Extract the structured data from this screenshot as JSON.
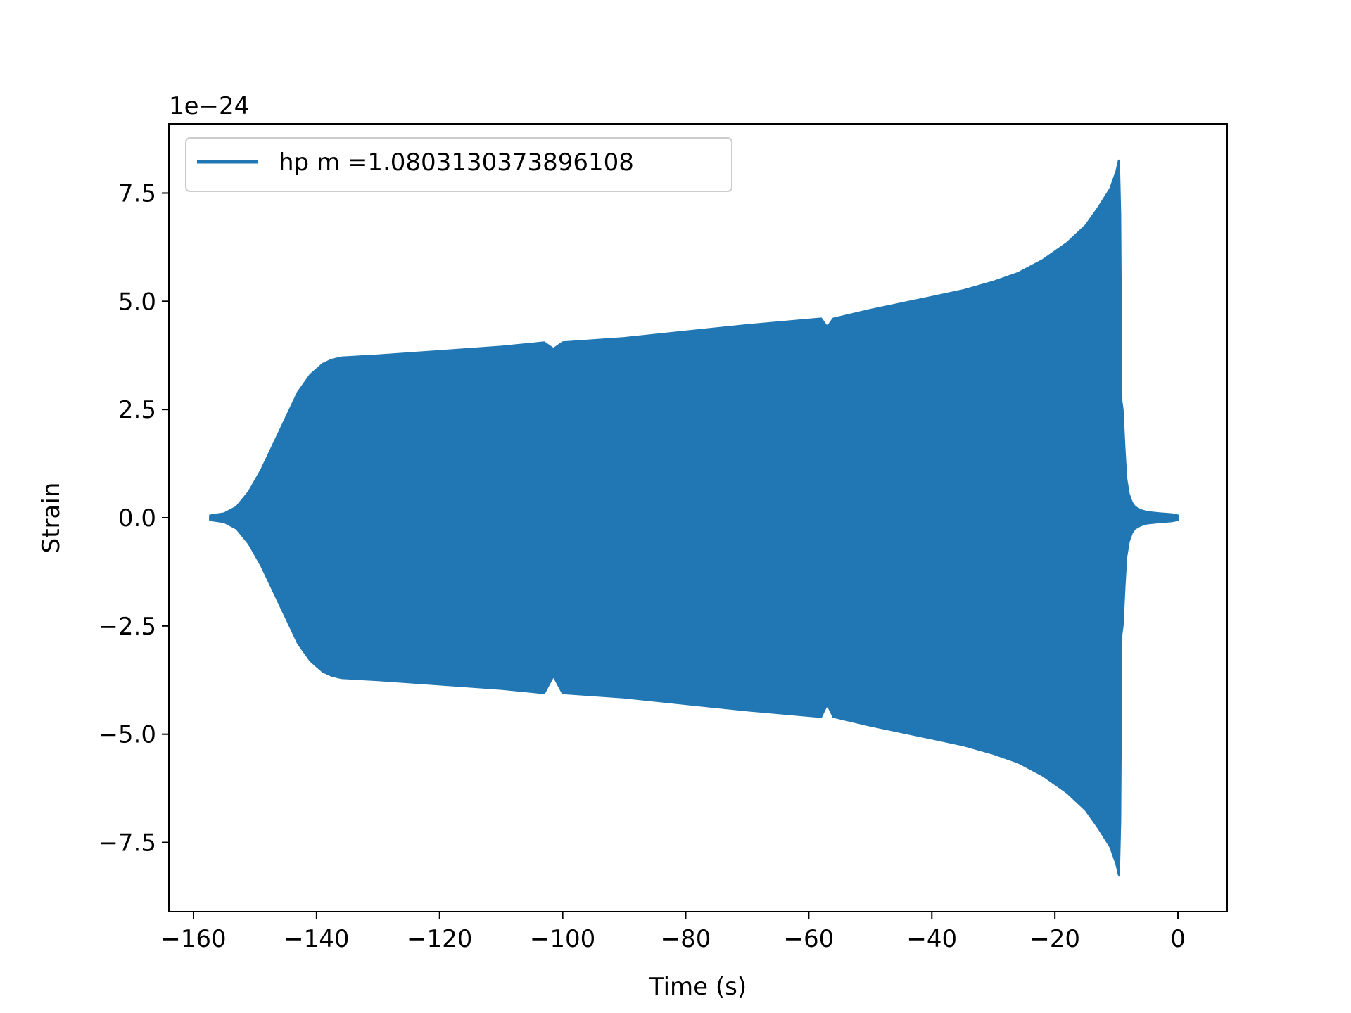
{
  "chart_data": {
    "type": "area",
    "title": "",
    "xlabel": "Time (s)",
    "ylabel": "Strain",
    "y_offset_text": "1e−24",
    "xlim": [
      -164,
      8
    ],
    "ylim": [
      -9.1,
      9.1
    ],
    "x_ticks": [
      -160,
      -140,
      -120,
      -100,
      -80,
      -60,
      -40,
      -20,
      0
    ],
    "x_tick_labels": [
      "−160",
      "−140",
      "−120",
      "−100",
      "−80",
      "−60",
      "−40",
      "−20",
      "0"
    ],
    "y_ticks": [
      -7.5,
      -5.0,
      -2.5,
      0.0,
      2.5,
      5.0,
      7.5
    ],
    "y_tick_labels": [
      "−7.5",
      "−5.0",
      "−2.5",
      "0.0",
      "2.5",
      "5.0",
      "7.5"
    ],
    "grid": false,
    "legend_position": "upper-left",
    "series": [
      {
        "name": "hp m =1.0803130373896108",
        "color": "#2077b4",
        "description_of_values": "envelope of oscillating strain (units of 1e-24)",
        "x": [
          -157.3,
          -155,
          -153,
          -151,
          -149,
          -147,
          -145,
          -143,
          -141,
          -139,
          -137.5,
          -136,
          -130,
          -120,
          -110,
          -103,
          -101.5,
          -100,
          -90,
          -80,
          -70,
          -62,
          -58,
          -57,
          -56,
          -50,
          -45,
          -40,
          -35,
          -30,
          -26,
          -22,
          -18,
          -15,
          -13,
          -11,
          -10,
          -9.6,
          -9.4,
          -9.2,
          -9.0,
          -8.7,
          -8.4,
          -8.0,
          -7.5,
          -7.0,
          -6.0,
          -5.0,
          -3.0,
          -1.0,
          0.0
        ],
        "upper": [
          0.05,
          0.1,
          0.25,
          0.6,
          1.1,
          1.7,
          2.3,
          2.9,
          3.3,
          3.55,
          3.65,
          3.7,
          3.75,
          3.85,
          3.95,
          4.05,
          3.9,
          4.05,
          4.15,
          4.3,
          4.45,
          4.55,
          4.6,
          4.4,
          4.6,
          4.8,
          4.95,
          5.1,
          5.25,
          5.45,
          5.65,
          5.95,
          6.35,
          6.75,
          7.15,
          7.6,
          8.0,
          8.25,
          7.0,
          2.7,
          2.5,
          1.6,
          0.9,
          0.55,
          0.35,
          0.25,
          0.17,
          0.13,
          0.1,
          0.08,
          0.05
        ],
        "lower": [
          -0.05,
          -0.1,
          -0.25,
          -0.6,
          -1.1,
          -1.7,
          -2.3,
          -2.9,
          -3.3,
          -3.55,
          -3.65,
          -3.7,
          -3.75,
          -3.85,
          -3.95,
          -4.05,
          -3.65,
          -4.05,
          -4.15,
          -4.3,
          -4.45,
          -4.55,
          -4.6,
          -4.3,
          -4.6,
          -4.8,
          -4.95,
          -5.1,
          -5.25,
          -5.45,
          -5.65,
          -5.95,
          -6.35,
          -6.75,
          -7.15,
          -7.6,
          -8.0,
          -8.25,
          -7.0,
          -2.7,
          -2.5,
          -1.6,
          -0.9,
          -0.55,
          -0.35,
          -0.25,
          -0.17,
          -0.13,
          -0.1,
          -0.08,
          -0.05
        ]
      }
    ]
  }
}
